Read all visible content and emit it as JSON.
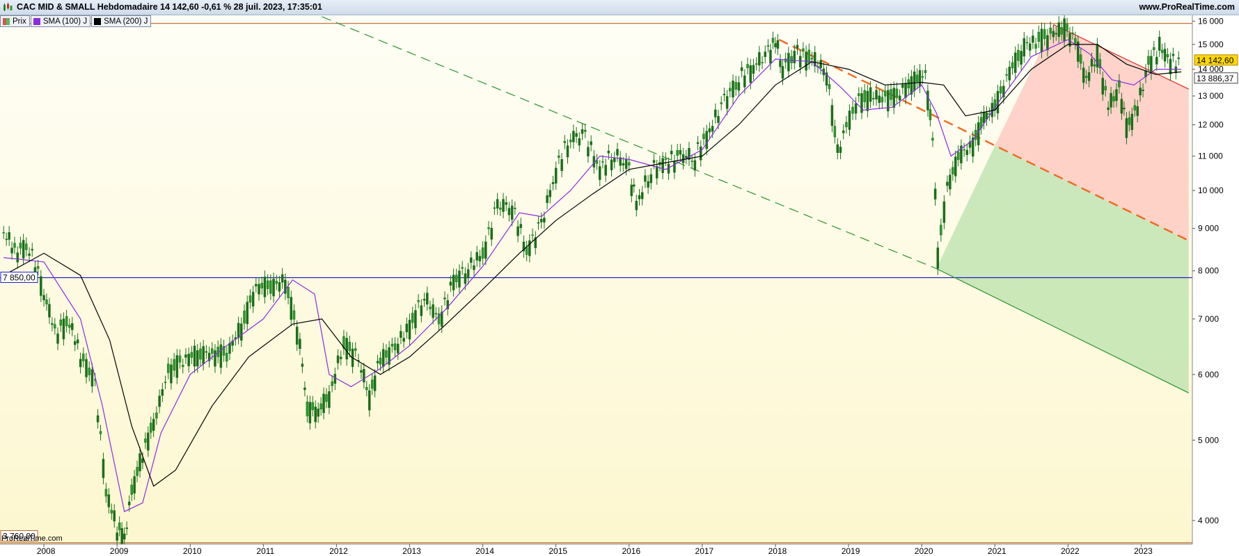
{
  "header": {
    "title": "CAC MID & SMALL Hebdomadaire 14 142,60 -0,61 % 28 juil. 2023, 17:35:01",
    "site": "www.ProRealTime.com"
  },
  "legend": [
    {
      "label": "Prix",
      "color": "#5cb85c"
    },
    {
      "label": "SMA (100) J",
      "color": "#8a2be2"
    },
    {
      "label": "SMA (200) J",
      "color": "#000000"
    }
  ],
  "footer_brand": "ProRealTime.com",
  "price_tags": {
    "last": "14 142,60",
    "sma": "13 886,37",
    "level_blue": "7 850,00",
    "level_low": "3 760,00"
  },
  "colors": {
    "price": "#1a6e1a",
    "price_up": "#2e9a2e",
    "sma100": "#8a2be2",
    "sma200": "#000000",
    "support_line": "#2020c8",
    "resistance_line": "#b4642a",
    "green_dash": "#3a9a3a",
    "orange_dash": "#f26b21",
    "red_line": "#e03030",
    "green_zone": "#b5e0a8",
    "red_zone": "#ffc4bc",
    "bg_top": "#fefef5",
    "bg_bottom": "#fdf8d2"
  },
  "chart_data": {
    "type": "line",
    "instrument": "CAC MID & SMALL",
    "period": "Hebdomadaire",
    "y_scale": "log",
    "ylim": [
      3760,
      16200
    ],
    "xlim": [
      2007.4,
      2023.7
    ],
    "y_ticks": [
      4000,
      5000,
      6000,
      7000,
      8000,
      9000,
      10000,
      11000,
      12000,
      13000,
      14000,
      15000,
      16000
    ],
    "y_tick_labels": [
      "4 000",
      "5 000",
      "6 000",
      "7 000",
      "8 000",
      "9 000",
      "10 000",
      "11 000",
      "12 000",
      "13 000",
      "14 000",
      "15 000",
      "16 000"
    ],
    "x_ticks": [
      2008,
      2009,
      2010,
      2011,
      2012,
      2013,
      2014,
      2015,
      2016,
      2017,
      2018,
      2019,
      2020,
      2021,
      2022,
      2023
    ],
    "x_tick_labels": [
      "2008",
      "2009",
      "2010",
      "2011",
      "2012",
      "2013",
      "2014",
      "2015",
      "2016",
      "2017",
      "2018",
      "2019",
      "2020",
      "2021",
      "2022",
      "2023"
    ],
    "series": [
      {
        "name": "Prix",
        "x": [
          2007.45,
          2007.6,
          2007.8,
          2008.0,
          2008.15,
          2008.35,
          2008.5,
          2008.7,
          2008.85,
          2009.0,
          2009.1,
          2009.2,
          2009.35,
          2009.5,
          2009.7,
          2009.9,
          2010.1,
          2010.3,
          2010.5,
          2010.7,
          2010.9,
          2011.1,
          2011.3,
          2011.5,
          2011.6,
          2011.75,
          2011.9,
          2012.1,
          2012.3,
          2012.45,
          2012.6,
          2012.8,
          2013.0,
          2013.2,
          2013.4,
          2013.6,
          2013.8,
          2014.0,
          2014.2,
          2014.4,
          2014.6,
          2014.8,
          2015.0,
          2015.2,
          2015.4,
          2015.6,
          2015.8,
          2016.0,
          2016.1,
          2016.3,
          2016.5,
          2016.7,
          2016.9,
          2017.1,
          2017.3,
          2017.5,
          2017.7,
          2017.9,
          2018.0,
          2018.1,
          2018.3,
          2018.5,
          2018.7,
          2018.85,
          2018.97,
          2019.1,
          2019.3,
          2019.5,
          2019.7,
          2019.9,
          2020.05,
          2020.15,
          2020.22,
          2020.35,
          2020.5,
          2020.7,
          2020.85,
          2021.0,
          2021.2,
          2021.4,
          2021.6,
          2021.8,
          2021.95,
          2022.1,
          2022.25,
          2022.4,
          2022.55,
          2022.7,
          2022.8,
          2022.95,
          2023.1,
          2023.25,
          2023.4,
          2023.55
        ],
        "values": [
          8900,
          8400,
          8500,
          7500,
          6700,
          6900,
          6300,
          5800,
          4300,
          3900,
          3780,
          4300,
          4800,
          5200,
          6000,
          6200,
          6300,
          6300,
          6300,
          6800,
          7600,
          7600,
          7700,
          6500,
          5400,
          5400,
          5600,
          6500,
          6200,
          5600,
          6200,
          6400,
          6800,
          7400,
          6900,
          7700,
          8000,
          8300,
          9500,
          9500,
          8400,
          9000,
          10500,
          11500,
          11500,
          10500,
          11000,
          10500,
          9500,
          10500,
          10700,
          10900,
          10900,
          11700,
          12700,
          13500,
          14000,
          14500,
          15000,
          14000,
          14500,
          14300,
          13800,
          11000,
          11800,
          12700,
          12900,
          12800,
          13000,
          13500,
          13600,
          11500,
          8300,
          10000,
          10900,
          11300,
          12100,
          12500,
          13800,
          14800,
          15100,
          15300,
          15600,
          15000,
          13500,
          14500,
          12500,
          13200,
          11800,
          12500,
          14100,
          14800,
          14200,
          14140
        ]
      },
      {
        "name": "SMA (100) J",
        "x": [
          2007.45,
          2008.0,
          2008.5,
          2008.8,
          2009.1,
          2009.35,
          2009.6,
          2010.0,
          2010.5,
          2011.0,
          2011.4,
          2011.7,
          2011.9,
          2012.2,
          2012.6,
          2013.0,
          2013.5,
          2014.0,
          2014.5,
          2014.8,
          2015.2,
          2015.6,
          2016.0,
          2016.5,
          2017.0,
          2017.5,
          2018.0,
          2018.5,
          2018.9,
          2019.2,
          2019.6,
          2020.0,
          2020.2,
          2020.4,
          2020.7,
          2021.0,
          2021.5,
          2022.0,
          2022.3,
          2022.6,
          2022.9,
          2023.2,
          2023.55
        ],
        "values": [
          8300,
          8200,
          7000,
          5500,
          4100,
          4200,
          5100,
          6000,
          6500,
          7000,
          7800,
          7500,
          6000,
          5800,
          6100,
          6500,
          7200,
          8100,
          9400,
          9300,
          10000,
          11000,
          10900,
          10600,
          11200,
          13000,
          14400,
          14300,
          13300,
          12500,
          12600,
          13400,
          12400,
          11000,
          11500,
          12600,
          14500,
          15200,
          14600,
          13600,
          13400,
          14000,
          14000
        ]
      },
      {
        "name": "SMA (200) J",
        "x": [
          2007.45,
          2008.0,
          2008.5,
          2008.9,
          2009.2,
          2009.5,
          2009.8,
          2010.3,
          2010.8,
          2011.4,
          2011.8,
          2012.2,
          2012.6,
          2013.0,
          2013.5,
          2014.0,
          2014.5,
          2015.0,
          2015.5,
          2016.0,
          2016.5,
          2017.0,
          2017.5,
          2018.0,
          2018.5,
          2019.0,
          2019.5,
          2020.0,
          2020.3,
          2020.6,
          2021.0,
          2021.5,
          2022.0,
          2022.4,
          2022.8,
          2023.2,
          2023.55
        ],
        "values": [
          7900,
          8400,
          7900,
          6600,
          5200,
          4400,
          4600,
          5500,
          6300,
          6900,
          7000,
          6300,
          6000,
          6300,
          6900,
          7600,
          8400,
          9200,
          9900,
          10600,
          10800,
          11000,
          12000,
          13400,
          14300,
          14000,
          13400,
          13500,
          13400,
          12300,
          12500,
          14000,
          15000,
          15000,
          14200,
          13800,
          13900
        ]
      }
    ],
    "levels": [
      {
        "label": "7 850,00",
        "value": 7850
      },
      {
        "label": "3 760,00",
        "value": 3760
      },
      {
        "value": 15900
      }
    ],
    "trendlines": [
      {
        "name": "green-dashed",
        "x": [
          2011.8,
          2020.2
        ],
        "values": [
          16200,
          8050
        ]
      },
      {
        "name": "green-solid",
        "x": [
          2020.2,
          2023.65
        ],
        "values": [
          8050,
          5700
        ]
      },
      {
        "name": "orange-dashed",
        "x": [
          2018.05,
          2023.65
        ],
        "values": [
          15200,
          8700
        ]
      },
      {
        "name": "red-solid",
        "x": [
          2021.8,
          2023.65
        ],
        "values": [
          15850,
          13250
        ]
      }
    ],
    "grid": false,
    "legend_position": "top-left"
  }
}
